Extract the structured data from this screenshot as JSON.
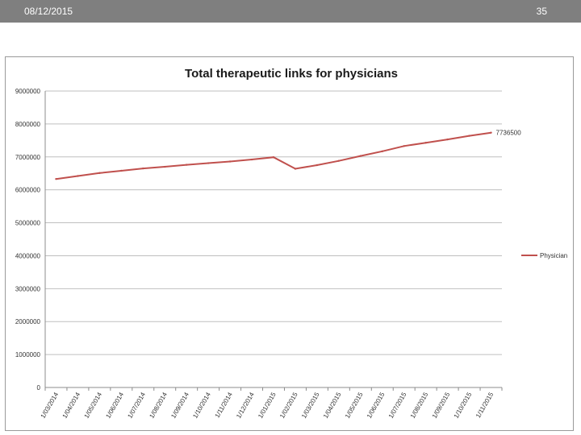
{
  "header": {
    "date": "08/12/2015",
    "page_number": "35"
  },
  "colors": {
    "series": "#c0504d",
    "grid": "#bfbfbf",
    "axis": "#8c8c8c"
  },
  "chart_data": {
    "type": "line",
    "title": "Total therapeutic links for physicians",
    "xlabel": "",
    "ylabel": "",
    "ylim": [
      0,
      9000000
    ],
    "yticks": [
      0,
      1000000,
      2000000,
      3000000,
      4000000,
      5000000,
      6000000,
      7000000,
      8000000,
      9000000
    ],
    "categories": [
      "1/03/2014",
      "1/04/2014",
      "1/05/2014",
      "1/06/2014",
      "1/07/2014",
      "1/08/2014",
      "1/09/2014",
      "1/10/2014",
      "1/11/2014",
      "1/12/2014",
      "1/01/2015",
      "1/02/2015",
      "1/03/2015",
      "1/04/2015",
      "1/05/2015",
      "1/06/2015",
      "1/07/2015",
      "1/08/2015",
      "1/09/2015",
      "1/10/2015",
      "1/11/2015"
    ],
    "series": [
      {
        "name": "Physician",
        "values": [
          6330000,
          6420000,
          6510000,
          6580000,
          6650000,
          6700000,
          6760000,
          6810000,
          6860000,
          6920000,
          6990000,
          6640000,
          6750000,
          6880000,
          7030000,
          7170000,
          7330000,
          7430000,
          7530000,
          7640000,
          7736500
        ]
      }
    ],
    "end_label": "7736500",
    "legend": {
      "position": "right"
    }
  }
}
